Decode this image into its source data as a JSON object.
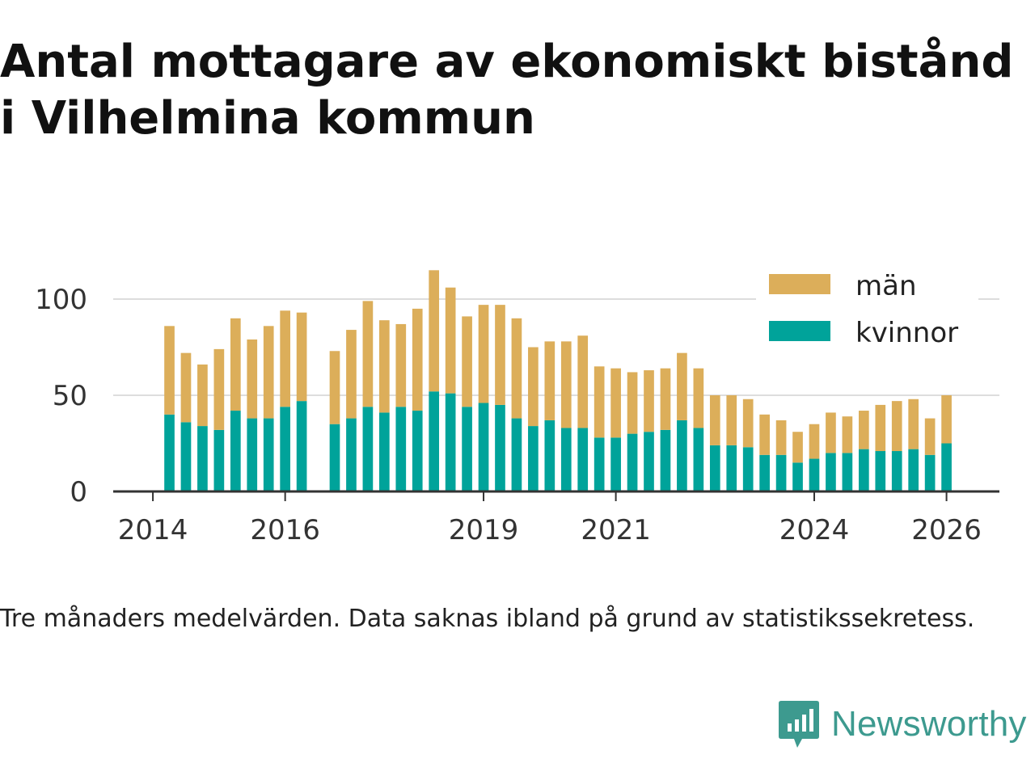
{
  "title": "Antal mottagare av ekonomiskt bistånd i Vilhelmina kommun",
  "caption": "Tre månaders medelvärden. Data saknas ibland på grund av statistikssekretess.",
  "brand": {
    "name": "Newsworthy",
    "icon": "newsworthy-logo-icon",
    "color": "#3d9a8f"
  },
  "colors": {
    "kvinnor": "#00a39a",
    "man": "#dcae5a",
    "grid": "#dddddd",
    "axis": "#333333"
  },
  "chart_data": {
    "type": "bar",
    "stacked": true,
    "x_start": 2014,
    "x_step": 0.25,
    "x_ticks": [
      2014,
      2016,
      2019,
      2021,
      2024,
      2026
    ],
    "y_ticks": [
      0,
      50,
      100
    ],
    "ylim": [
      0,
      120
    ],
    "xlim": [
      2013.4,
      2026.8
    ],
    "legend": {
      "position": "top-right",
      "entries": [
        "män",
        "kvinnor"
      ]
    },
    "series": [
      {
        "name": "kvinnor",
        "values": [
          null,
          40,
          36,
          34,
          32,
          42,
          38,
          38,
          44,
          47,
          null,
          35,
          38,
          44,
          41,
          44,
          42,
          52,
          51,
          44,
          46,
          45,
          38,
          34,
          37,
          33,
          33,
          28,
          28,
          30,
          31,
          32,
          37,
          33,
          24,
          24,
          23,
          19,
          19,
          15,
          17,
          20,
          20,
          22,
          21,
          21,
          22,
          19,
          25
        ]
      },
      {
        "name": "män",
        "values": [
          null,
          46,
          36,
          32,
          42,
          48,
          41,
          48,
          50,
          46,
          null,
          38,
          46,
          55,
          48,
          43,
          53,
          63,
          55,
          47,
          51,
          52,
          52,
          41,
          41,
          45,
          48,
          37,
          36,
          32,
          32,
          32,
          35,
          31,
          26,
          26,
          25,
          21,
          18,
          16,
          18,
          21,
          19,
          20,
          24,
          26,
          26,
          19,
          25
        ]
      }
    ]
  }
}
